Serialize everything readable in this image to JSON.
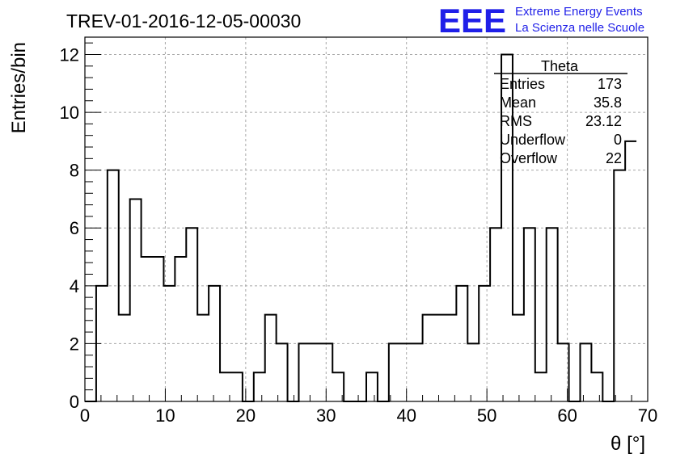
{
  "header": {
    "run_title": "TREV-01-2016-12-05-00030",
    "logo_text": "EEE",
    "logo_line1": "Extreme Energy Events",
    "logo_line2": "La Scienza nelle Scuole",
    "logo_color": "#1f1fe8"
  },
  "chart_data": {
    "type": "bar",
    "title": "TREV-01-2016-12-05-00030",
    "xlabel": "θ [°]",
    "ylabel": "Entries/bin",
    "xlim": [
      0,
      70
    ],
    "ylim": [
      0,
      12.6
    ],
    "bin_width": 1.4,
    "x_ticks": [
      "0",
      "10",
      "20",
      "30",
      "40",
      "50",
      "60",
      "70"
    ],
    "y_ticks": [
      "0",
      "2",
      "4",
      "6",
      "8",
      "10",
      "12"
    ],
    "grid": true,
    "values": [
      0,
      4,
      8,
      3,
      7,
      5,
      5,
      4,
      5,
      6,
      3,
      4,
      1,
      1,
      0,
      1,
      3,
      2,
      0,
      2,
      2,
      2,
      1,
      0,
      0,
      1,
      0,
      2,
      2,
      2,
      3,
      3,
      3,
      4,
      2,
      4,
      6,
      12,
      3,
      6,
      1,
      6,
      2,
      0,
      2,
      1,
      0,
      8,
      9
    ],
    "stats": {
      "title": "Theta",
      "rows": [
        {
          "label": "Entries",
          "value": "173"
        },
        {
          "label": "Mean",
          "value": "35.8"
        },
        {
          "label": "RMS",
          "value": "23.12"
        },
        {
          "label": "Underflow",
          "value": "0"
        },
        {
          "label": "Overflow",
          "value": "22"
        }
      ]
    }
  }
}
